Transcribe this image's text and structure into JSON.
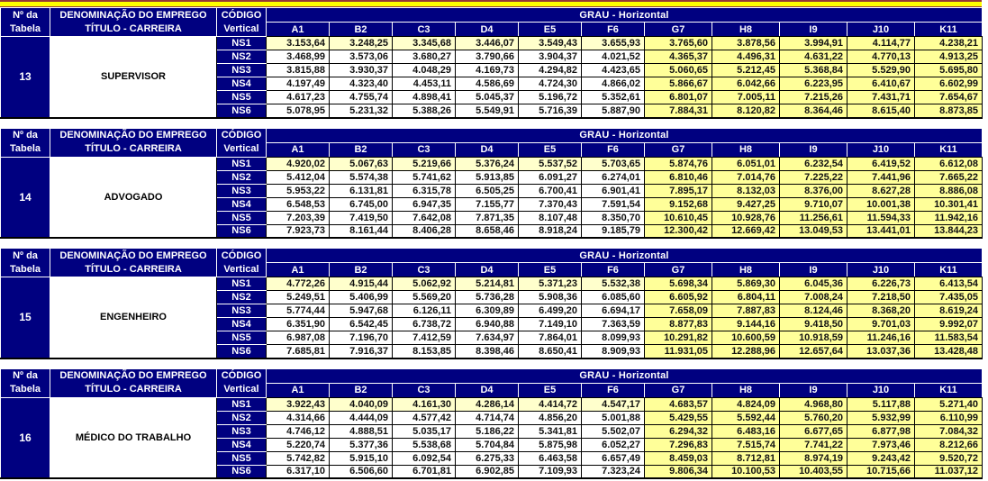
{
  "colors": {
    "navy_header": "#000080",
    "pale_yellow_ns1": "#FFFFCC",
    "yellow_grade_block": "#FFFF99",
    "top_strip_yellow": "#FFFF00",
    "top_strip_border": "#953735",
    "grid_line": "#000000",
    "header_text": "#FFFFFF",
    "value_text": "#111111"
  },
  "labels": {
    "table_number": [
      "Nº da",
      "Tabela"
    ],
    "denomination": [
      "DENOMINAÇÃO DO EMPREGO",
      "TÍTULO - CARREIRA"
    ],
    "codigo": [
      "CÓDIGO",
      "Vertical"
    ],
    "grau": "GRAU - Horizontal"
  },
  "grade_columns": [
    "A1",
    "B2",
    "C3",
    "D4",
    "E5",
    "F6",
    "G7",
    "H8",
    "I9",
    "J10",
    "K11"
  ],
  "row_labels": [
    "NS1",
    "NS2",
    "NS3",
    "NS4",
    "NS5",
    "NS6"
  ],
  "tables": [
    {
      "number": "13",
      "title": "SUPERVISOR",
      "rows": [
        [
          "3.153,64",
          "3.248,25",
          "3.345,68",
          "3.446,07",
          "3.549,43",
          "3.655,93",
          "3.765,60",
          "3.878,56",
          "3.994,91",
          "4.114,77",
          "4.238,21"
        ],
        [
          "3.468,99",
          "3.573,06",
          "3.680,27",
          "3.790,66",
          "3.904,37",
          "4.021,52",
          "4.365,37",
          "4.496,31",
          "4.631,22",
          "4.770,13",
          "4.913,25"
        ],
        [
          "3.815,88",
          "3.930,37",
          "4.048,29",
          "4.169,73",
          "4.294,82",
          "4.423,65",
          "5.060,65",
          "5.212,45",
          "5.368,84",
          "5.529,90",
          "5.695,80"
        ],
        [
          "4.197,49",
          "4.323,40",
          "4.453,11",
          "4.586,69",
          "4.724,30",
          "4.866,02",
          "5.866,67",
          "6.042,66",
          "6.223,95",
          "6.410,67",
          "6.602,99"
        ],
        [
          "4.617,23",
          "4.755,74",
          "4.898,41",
          "5.045,37",
          "5.196,72",
          "5.352,61",
          "6.801,07",
          "7.005,11",
          "7.215,26",
          "7.431,71",
          "7.654,67"
        ],
        [
          "5.078,95",
          "5.231,32",
          "5.388,26",
          "5.549,91",
          "5.716,39",
          "5.887,90",
          "7.884,31",
          "8.120,82",
          "8.364,46",
          "8.615,40",
          "8.873,85"
        ]
      ]
    },
    {
      "number": "14",
      "title": "ADVOGADO",
      "rows": [
        [
          "4.920,02",
          "5.067,63",
          "5.219,66",
          "5.376,24",
          "5.537,52",
          "5.703,65",
          "5.874,76",
          "6.051,01",
          "6.232,54",
          "6.419,52",
          "6.612,08"
        ],
        [
          "5.412,04",
          "5.574,38",
          "5.741,62",
          "5.913,85",
          "6.091,27",
          "6.274,01",
          "6.810,46",
          "7.014,76",
          "7.225,22",
          "7.441,96",
          "7.665,22"
        ],
        [
          "5.953,22",
          "6.131,81",
          "6.315,78",
          "6.505,25",
          "6.700,41",
          "6.901,41",
          "7.895,17",
          "8.132,03",
          "8.376,00",
          "8.627,28",
          "8.886,08"
        ],
        [
          "6.548,53",
          "6.745,00",
          "6.947,35",
          "7.155,77",
          "7.370,43",
          "7.591,54",
          "9.152,68",
          "9.427,25",
          "9.710,07",
          "10.001,38",
          "10.301,41"
        ],
        [
          "7.203,39",
          "7.419,50",
          "7.642,08",
          "7.871,35",
          "8.107,48",
          "8.350,70",
          "10.610,45",
          "10.928,76",
          "11.256,61",
          "11.594,33",
          "11.942,16"
        ],
        [
          "7.923,73",
          "8.161,44",
          "8.406,28",
          "8.658,46",
          "8.918,24",
          "9.185,79",
          "12.300,42",
          "12.669,42",
          "13.049,53",
          "13.441,01",
          "13.844,23"
        ]
      ]
    },
    {
      "number": "15",
      "title": "ENGENHEIRO",
      "rows": [
        [
          "4.772,26",
          "4.915,44",
          "5.062,92",
          "5.214,81",
          "5.371,23",
          "5.532,38",
          "5.698,34",
          "5.869,30",
          "6.045,36",
          "6.226,73",
          "6.413,54"
        ],
        [
          "5.249,51",
          "5.406,99",
          "5.569,20",
          "5.736,28",
          "5.908,36",
          "6.085,60",
          "6.605,92",
          "6.804,11",
          "7.008,24",
          "7.218,50",
          "7.435,05"
        ],
        [
          "5.774,44",
          "5.947,68",
          "6.126,11",
          "6.309,89",
          "6.499,20",
          "6.694,17",
          "7.658,09",
          "7.887,83",
          "8.124,46",
          "8.368,20",
          "8.619,24"
        ],
        [
          "6.351,90",
          "6.542,45",
          "6.738,72",
          "6.940,88",
          "7.149,10",
          "7.363,59",
          "8.877,83",
          "9.144,16",
          "9.418,50",
          "9.701,03",
          "9.992,07"
        ],
        [
          "6.987,08",
          "7.196,70",
          "7.412,59",
          "7.634,97",
          "7.864,01",
          "8.099,93",
          "10.291,82",
          "10.600,59",
          "10.918,59",
          "11.246,16",
          "11.583,54"
        ],
        [
          "7.685,81",
          "7.916,37",
          "8.153,85",
          "8.398,46",
          "8.650,41",
          "8.909,93",
          "11.931,05",
          "12.288,96",
          "12.657,64",
          "13.037,36",
          "13.428,48"
        ]
      ]
    },
    {
      "number": "16",
      "title": "MÉDICO DO TRABALHO",
      "rows": [
        [
          "3.922,43",
          "4.040,09",
          "4.161,30",
          "4.286,14",
          "4.414,72",
          "4.547,17",
          "4.683,57",
          "4.824,09",
          "4.968,80",
          "5.117,88",
          "5.271,40"
        ],
        [
          "4.314,66",
          "4.444,09",
          "4.577,42",
          "4.714,74",
          "4.856,20",
          "5.001,88",
          "5.429,55",
          "5.592,44",
          "5.760,20",
          "5.932,99",
          "6.110,99"
        ],
        [
          "4.746,12",
          "4.888,51",
          "5.035,17",
          "5.186,22",
          "5.341,81",
          "5.502,07",
          "6.294,32",
          "6.483,16",
          "6.677,65",
          "6.877,98",
          "7.084,32"
        ],
        [
          "5.220,74",
          "5.377,36",
          "5.538,68",
          "5.704,84",
          "5.875,98",
          "6.052,27",
          "7.296,83",
          "7.515,74",
          "7.741,22",
          "7.973,46",
          "8.212,66"
        ],
        [
          "5.742,82",
          "5.915,10",
          "6.092,54",
          "6.275,33",
          "6.463,58",
          "6.657,49",
          "8.459,03",
          "8.712,81",
          "8.974,19",
          "9.243,42",
          "9.520,72"
        ],
        [
          "6.317,10",
          "6.506,60",
          "6.701,81",
          "6.902,85",
          "7.109,93",
          "7.323,24",
          "9.806,34",
          "10.100,53",
          "10.403,55",
          "10.715,66",
          "11.037,12"
        ]
      ]
    }
  ]
}
